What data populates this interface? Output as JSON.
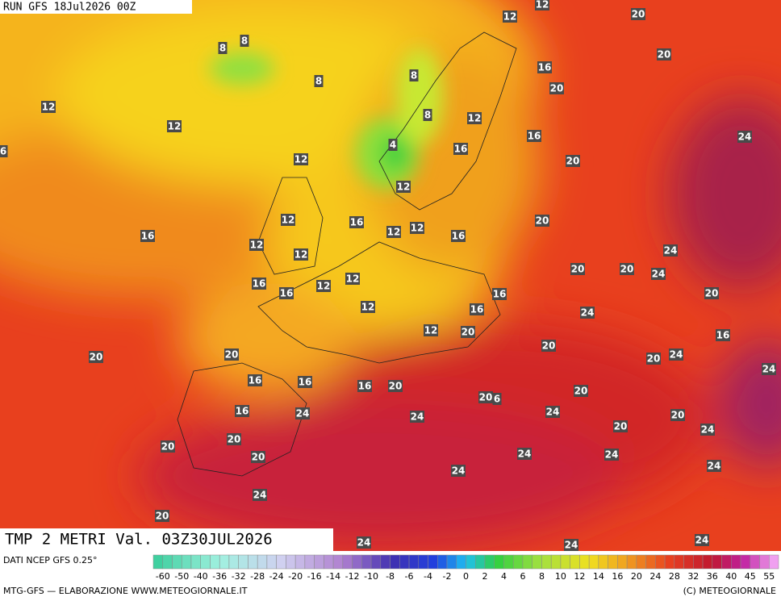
{
  "header": {
    "run": "RUN GFS 18Jul2026 00Z"
  },
  "title": "TMP 2 METRI Val. 03Z30JUL2026",
  "source": "DATI NCEP GFS 0.25°",
  "scale": [
    -60,
    -50,
    -40,
    -36,
    -32,
    -28,
    -24,
    -20,
    -16,
    -14,
    -12,
    -10,
    -8,
    -6,
    -4,
    -2,
    0,
    2,
    4,
    6,
    8,
    10,
    12,
    14,
    16,
    20,
    24,
    28,
    32,
    36,
    40,
    45,
    55
  ],
  "footer": {
    "left": "MTG-GFS — ELABORAZIONE WWW.METEOGIORNALE.IT",
    "right": "(C) METEOGIORNALE"
  },
  "contour_labels": [
    12,
    12,
    20,
    8,
    8,
    20,
    16,
    8,
    8,
    20,
    12,
    8,
    12,
    12,
    16,
    24,
    4,
    16,
    6,
    12,
    20,
    12,
    12,
    16,
    20,
    12,
    12,
    16,
    12,
    12,
    16,
    24,
    20,
    20,
    24,
    12,
    16,
    16,
    12,
    16,
    20,
    12,
    16,
    24,
    20,
    12,
    16,
    20,
    20,
    20,
    20,
    24,
    24,
    16,
    16,
    16,
    20,
    20,
    20,
    6,
    16,
    24,
    24,
    24,
    20,
    20,
    24,
    20,
    20,
    20,
    24,
    24,
    24,
    24,
    24,
    20,
    24,
    24,
    24
  ]
}
